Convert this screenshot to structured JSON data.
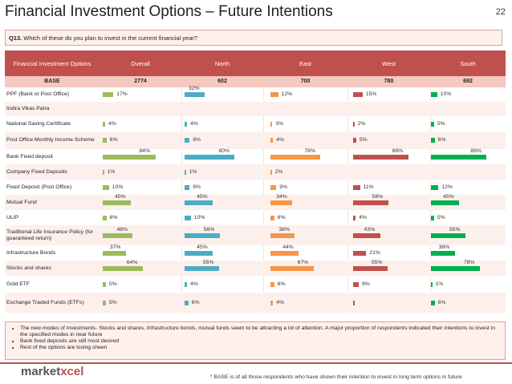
{
  "title": "Financial Investment Options – Future Intentions",
  "slide_number": "22",
  "question": {
    "id": "Q13.",
    "text": "Which of these do you plan to invest in the current financial year?"
  },
  "colors": {
    "overall": "#9bbb59",
    "north": "#4bacc6",
    "east": "#f79646",
    "west": "#c0504d",
    "south": "#00b050",
    "header": "#c0504d"
  },
  "header": {
    "label": "Financial Investment Options",
    "columns": [
      "Overall",
      "North",
      "East",
      "West",
      "South"
    ]
  },
  "base": {
    "label": "BASE",
    "values": [
      "2774",
      "602",
      "700",
      "780",
      "692"
    ]
  },
  "rows": [
    {
      "label": "PPF (Bank or Post Office)",
      "values": [
        17,
        32,
        12,
        15,
        10
      ]
    },
    {
      "label": "Indira Vikas Patra",
      "values": [
        null,
        null,
        null,
        null,
        null
      ]
    },
    {
      "label": "National Saving Certificate",
      "values": [
        4,
        4,
        3,
        2,
        5
      ]
    },
    {
      "label": "Post Office Monthly Income Scheme",
      "values": [
        6,
        8,
        4,
        5,
        6
      ]
    },
    {
      "label": "Bank Fixed deposit",
      "values": [
        84,
        80,
        78,
        88,
        89
      ]
    },
    {
      "label": "Company Fixed Deposits",
      "values": [
        1,
        1,
        2,
        null,
        null
      ]
    },
    {
      "label": "Fixed Deposit (Post Office)",
      "values": [
        10,
        8,
        9,
        11,
        12
      ]
    },
    {
      "label": "Mutual Fund",
      "values": [
        45,
        45,
        34,
        56,
        45
      ]
    },
    {
      "label": "ULIP",
      "values": [
        6,
        10,
        6,
        4,
        5
      ]
    },
    {
      "label": "Traditional Life Insurance Policy (for guaranteed return)",
      "values": [
        48,
        56,
        38,
        43,
        55
      ]
    },
    {
      "label": "Infrastructure Bonds",
      "values": [
        37,
        45,
        44,
        21,
        38
      ]
    },
    {
      "label": "Stocks and shares",
      "values": [
        64,
        55,
        67,
        55,
        78
      ]
    },
    {
      "label": "Gold ETF",
      "values": [
        5,
        4,
        6,
        9,
        1
      ]
    },
    {
      "label": "Exchange Traded Funds (ETFs)",
      "values": [
        5,
        6,
        4,
        0,
        6
      ]
    }
  ],
  "notes": [
    "The new modes of investments- Stocks and shares, Infrastructure bonds, mutual funds seem to be attracting a lot of attention. A major proportion of respondents indicated their intentions to invest in the specified modes in near future",
    "Bank fixed deposits are still most desired",
    "Rest of the options are losing sheen"
  ],
  "logo": {
    "part1": "market",
    "part2": "xcel"
  },
  "footnote": "* BASE is of all those respondents who have shown their intention to invest in long term options in future"
}
